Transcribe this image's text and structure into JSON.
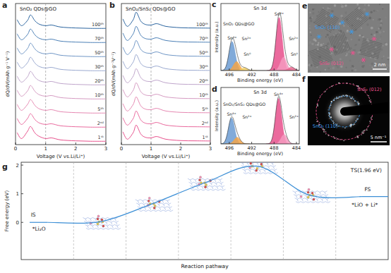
{
  "chart_data": [
    {
      "type": "line",
      "panel": "a",
      "title": "SnO₂ QDs@GO",
      "x_label": "Voltage (V vs.Li/Li⁺)",
      "y_label": "dQ/dV(mAh g⁻¹ V⁻¹)",
      "x": [
        0.05,
        0.2,
        0.4,
        0.5,
        0.65,
        0.8,
        1.0,
        1.2,
        1.5,
        2.0,
        2.5,
        3.0
      ],
      "xlim": [
        0,
        3
      ],
      "xticks": [
        0,
        1,
        2,
        3
      ],
      "ylim": [
        0,
        10.5
      ],
      "tick_labels": "x",
      "reference_line": 1,
      "series": [
        {
          "name": "1ˢᵗ",
          "color": "#e8508c",
          "values": [
            0.9,
            0.45,
            1.0,
            1.35,
            0.85,
            0.6,
            0.45,
            0.5,
            0.35,
            0.28,
            0.25,
            0.25
          ]
        },
        {
          "name": "2ⁿᵈ",
          "color": "#ea6a9e",
          "values": [
            1.95,
            1.5,
            1.95,
            2.3,
            1.85,
            1.6,
            1.5,
            1.55,
            1.4,
            1.33,
            1.3,
            1.3
          ]
        },
        {
          "name": "5ᵗʰ",
          "color": "#e688b2",
          "values": [
            3.0,
            2.55,
            3.0,
            3.35,
            2.9,
            2.65,
            2.55,
            2.6,
            2.45,
            2.38,
            2.35,
            2.35
          ]
        },
        {
          "name": "10ᵗʰ",
          "color": "#d69bc2",
          "values": [
            4.05,
            3.6,
            4.0,
            4.4,
            3.95,
            3.7,
            3.6,
            3.65,
            3.5,
            3.43,
            3.4,
            3.4
          ]
        },
        {
          "name": "20ᵗʰ",
          "color": "#bfa5cb",
          "values": [
            5.1,
            4.65,
            5.05,
            5.45,
            5.0,
            4.75,
            4.65,
            4.7,
            4.55,
            4.48,
            4.45,
            4.45
          ]
        },
        {
          "name": "30ᵗʰ",
          "color": "#9aa9d0",
          "values": [
            6.15,
            5.7,
            6.1,
            6.5,
            6.05,
            5.8,
            5.7,
            5.75,
            5.6,
            5.53,
            5.5,
            5.5
          ]
        },
        {
          "name": "50ᵗʰ",
          "color": "#6f96c6",
          "values": [
            7.2,
            6.75,
            7.15,
            7.55,
            7.1,
            6.85,
            6.75,
            6.8,
            6.65,
            6.58,
            6.55,
            6.55
          ]
        },
        {
          "name": "70ᵗʰ",
          "color": "#4b7fb6",
          "values": [
            8.25,
            7.8,
            8.2,
            8.6,
            8.15,
            7.9,
            7.8,
            7.85,
            7.7,
            7.63,
            7.6,
            7.6
          ]
        },
        {
          "name": "100ᵗʰ",
          "color": "#2a649f",
          "values": [
            9.3,
            8.85,
            9.25,
            9.65,
            9.2,
            8.95,
            8.85,
            8.9,
            8.75,
            8.68,
            8.65,
            8.65
          ]
        }
      ]
    },
    {
      "type": "line",
      "panel": "b",
      "title": "SnO₂/SnS₂ QDs@GO",
      "x_label": "Voltage (V vs.Li/Li⁺)",
      "y_label": "dQ/dV(mAh g⁻¹V⁻¹)",
      "x": [
        0.05,
        0.2,
        0.4,
        0.5,
        0.65,
        0.8,
        1.0,
        1.2,
        1.5,
        2.0,
        2.5,
        3.0
      ],
      "xlim": [
        0,
        3
      ],
      "xticks": [
        0,
        1,
        2,
        3
      ],
      "ylim": [
        0,
        10.5
      ],
      "tick_labels": "x",
      "reference_line": 1,
      "series": [
        {
          "name": "1ˢᵗ",
          "color": "#e8508c",
          "values": [
            0.95,
            0.4,
            0.9,
            1.45,
            0.8,
            0.55,
            0.5,
            0.6,
            0.4,
            0.3,
            0.28,
            0.27
          ]
        },
        {
          "name": "2ⁿᵈ",
          "color": "#ea6a9e",
          "values": [
            2.0,
            1.45,
            1.95,
            2.5,
            1.85,
            1.6,
            1.55,
            1.65,
            1.45,
            1.35,
            1.33,
            1.32
          ]
        },
        {
          "name": "5ᵗʰ",
          "color": "#e688b2",
          "values": [
            3.05,
            2.5,
            3.0,
            3.55,
            2.9,
            2.65,
            2.6,
            2.7,
            2.5,
            2.4,
            2.38,
            2.37
          ]
        },
        {
          "name": "10ᵗʰ",
          "color": "#d69bc2",
          "values": [
            4.1,
            3.55,
            4.05,
            4.6,
            3.95,
            3.7,
            3.65,
            3.75,
            3.55,
            3.45,
            3.43,
            3.42
          ]
        },
        {
          "name": "20ᵗʰ",
          "color": "#bfa5cb",
          "values": [
            5.15,
            4.6,
            5.1,
            5.65,
            5.0,
            4.75,
            4.7,
            4.8,
            4.6,
            4.5,
            4.48,
            4.47
          ]
        },
        {
          "name": "30ᵗʰ",
          "color": "#9aa9d0",
          "values": [
            6.2,
            5.65,
            6.15,
            6.7,
            6.05,
            5.8,
            5.75,
            5.85,
            5.65,
            5.55,
            5.53,
            5.52
          ]
        },
        {
          "name": "50ᵗʰ",
          "color": "#6f96c6",
          "values": [
            7.25,
            6.7,
            7.2,
            7.75,
            7.1,
            6.85,
            6.8,
            6.9,
            6.7,
            6.6,
            6.58,
            6.57
          ]
        },
        {
          "name": "70ᵗʰ",
          "color": "#4b7fb6",
          "values": [
            8.3,
            7.75,
            8.25,
            8.8,
            8.15,
            7.9,
            7.85,
            7.95,
            7.75,
            7.65,
            7.63,
            7.62
          ]
        },
        {
          "name": "100ᵗʰ",
          "color": "#2a649f",
          "values": [
            9.35,
            8.8,
            9.3,
            9.85,
            9.2,
            8.95,
            8.9,
            9.0,
            8.8,
            8.7,
            8.68,
            8.67
          ]
        }
      ]
    },
    {
      "type": "area",
      "panel": "c",
      "title": "SnO₂ QDs@GO",
      "subtitle": "Sn 3d",
      "x_label": "Binding energy (eV)",
      "y_label": "Intensity (a.u.)",
      "xlim": [
        497.5,
        483.5
      ],
      "xticks": [
        496,
        492,
        488,
        484
      ],
      "ylim": [
        0,
        1.2
      ],
      "tick_labels": "x",
      "peaks": [
        {
          "label": "Sn⁴⁺",
          "center": 495.5,
          "height": 0.52,
          "fwhm": 1.3,
          "color": "#6b9bd2"
        },
        {
          "label": "Sn²⁺",
          "center": 494.7,
          "height": 0.16,
          "fwhm": 1.3,
          "color": "#f3a548"
        },
        {
          "label": "Sn⁰",
          "center": 493.3,
          "height": 0.05,
          "fwhm": 1.3,
          "color": "#f6d36b"
        },
        {
          "label": "Sn⁴⁺",
          "center": 487.1,
          "height": 0.95,
          "fwhm": 1.3,
          "color": "#e8508c"
        },
        {
          "label": "Sn²⁺",
          "center": 486.3,
          "height": 0.24,
          "fwhm": 1.3,
          "color": "#f59ac0"
        },
        {
          "label": "Sn⁰",
          "center": 484.9,
          "height": 0.06,
          "fwhm": 1.3,
          "color": "#e9678f"
        }
      ]
    },
    {
      "type": "area",
      "panel": "d",
      "title": "SnO₂/SnS₂ QDs@GO",
      "subtitle": "Sn 3d",
      "x_label": "Binding energy (eV)",
      "y_label": "Intensity (a.u.)",
      "xlim": [
        497.5,
        483.5
      ],
      "xticks": [
        496,
        492,
        488,
        484
      ],
      "ylim": [
        0,
        1.2
      ],
      "tick_labels": "x",
      "peaks": [
        {
          "label": "Sn⁴⁺",
          "center": 495.6,
          "height": 0.55,
          "fwhm": 1.3,
          "color": "#6b9bd2"
        },
        {
          "label": "Sn²⁺",
          "center": 494.6,
          "height": 0.14,
          "fwhm": 1.3,
          "color": "#f3a548"
        },
        {
          "label": "Sn⁴⁺",
          "center": 487.2,
          "height": 0.97,
          "fwhm": 1.3,
          "color": "#e8508c"
        },
        {
          "label": "Sn²⁺",
          "center": 486.2,
          "height": 0.2,
          "fwhm": 1.3,
          "color": "#f59ac0"
        }
      ]
    },
    {
      "type": "line",
      "panel": "g",
      "x_label": "Reaction pathway",
      "y_label": "Free energy (eV)",
      "x": [
        0.5,
        1.5,
        2.5,
        3.5,
        4.5,
        5.5,
        6.5
      ],
      "values": [
        0,
        0.02,
        0.65,
        1.38,
        1.96,
        0.95,
        0.9
      ],
      "xlim": [
        0,
        7
      ],
      "ylim": [
        -1.3,
        2.1
      ],
      "yticks": [
        0,
        1,
        2
      ],
      "tick_labels": "y",
      "color": "#3c8fd6",
      "annotations": [
        "IS",
        "*Li₂O",
        "FS",
        "*LiO + Li*",
        "TS(1.96 eV)"
      ]
    }
  ],
  "images": [
    {
      "panel": "e",
      "labels": [
        {
          "text": "SnO₂ (110)",
          "color": "#3d9be9"
        },
        {
          "text": "SnS₂ (012)",
          "color": "#f0508f"
        }
      ],
      "scale_bar": "2 nm"
    },
    {
      "panel": "f",
      "labels": [
        {
          "text": "SnS₂ (012)",
          "color": "#f0508f"
        },
        {
          "text": "SnO₂ (110)",
          "color": "#3d9be9"
        }
      ],
      "scale_bar": "5 nm⁻¹"
    }
  ]
}
